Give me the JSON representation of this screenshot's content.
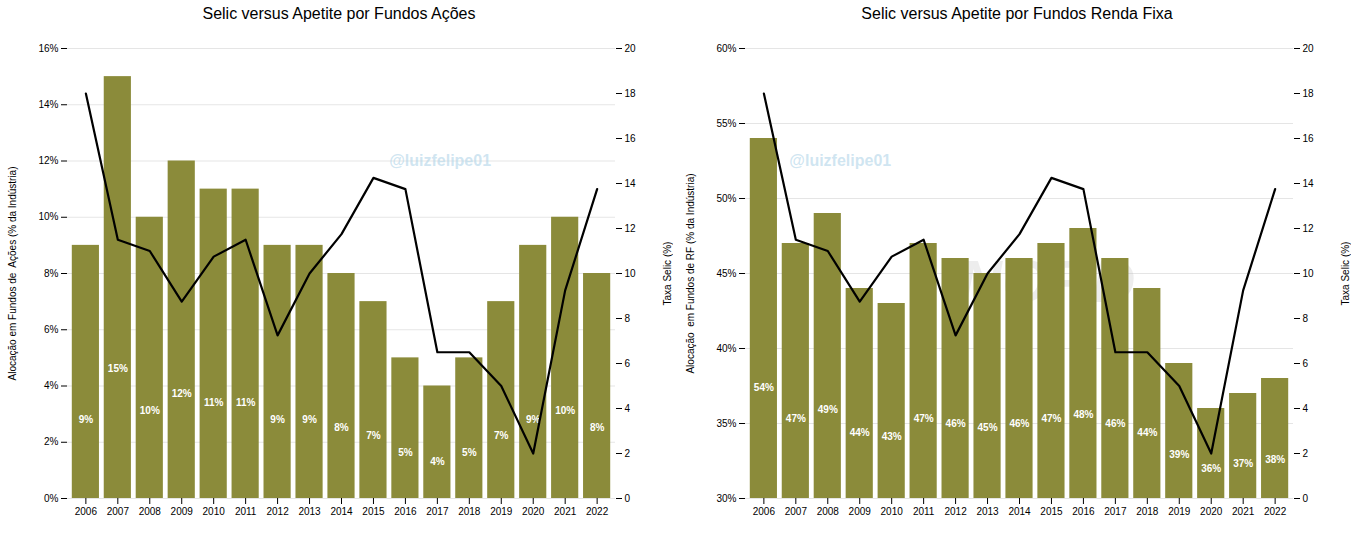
{
  "chart_data": [
    {
      "type": "bar",
      "title": "Selic versus Apetite por Fundos Ações",
      "ylabel": "Alocação em Fundos de  Ações (% da Indústria)",
      "y2label": "Taxa Selic (%)",
      "categories": [
        "2006",
        "2007",
        "2008",
        "2009",
        "2010",
        "2011",
        "2012",
        "2013",
        "2014",
        "2015",
        "2016",
        "2017",
        "2018",
        "2019",
        "2020",
        "2021",
        "2022"
      ],
      "series": [
        {
          "type": "bar",
          "color": "#8B8B3A",
          "values": [
            9,
            15,
            10,
            12,
            11,
            11,
            9,
            9,
            8,
            7,
            5,
            4,
            5,
            7,
            9,
            10,
            8
          ],
          "value_labels": [
            "9%",
            "15%",
            "10%",
            "12%",
            "11%",
            "11%",
            "9%",
            "9%",
            "8%",
            "7%",
            "5%",
            "4%",
            "5%",
            "7%",
            "9%",
            "10%",
            "8%"
          ]
        },
        {
          "type": "line",
          "axis": "y2",
          "color": "#000000",
          "values": [
            18.0,
            11.5,
            11.0,
            8.75,
            10.75,
            11.5,
            7.25,
            10.0,
            11.75,
            14.25,
            13.75,
            6.5,
            6.5,
            5.0,
            2.0,
            9.25,
            13.75
          ]
        }
      ],
      "ylim": [
        0,
        16
      ],
      "yticks": [
        {
          "value": 0,
          "label": "0%"
        },
        {
          "value": 2,
          "label": "2%"
        },
        {
          "value": 4,
          "label": "4%"
        },
        {
          "value": 6,
          "label": "6%"
        },
        {
          "value": 8,
          "label": "8%"
        },
        {
          "value": 10,
          "label": "10%"
        },
        {
          "value": 12,
          "label": "12%"
        },
        {
          "value": 14,
          "label": "14%"
        },
        {
          "value": 16,
          "label": "16%"
        }
      ],
      "y2lim": [
        0,
        20
      ],
      "y2ticks": [
        0,
        2,
        4,
        6,
        8,
        10,
        12,
        14,
        16,
        18,
        20
      ],
      "grid": true,
      "data_labels": true,
      "annotations": [
        "@luizfelipe01"
      ]
    },
    {
      "type": "bar",
      "title": "Selic versus Apetite por Fundos Renda Fixa",
      "ylabel": "Alocação  em Fundos de RF (% da Indústria)",
      "y2label": "Taxa Selic (%)",
      "categories": [
        "2006",
        "2007",
        "2008",
        "2009",
        "2010",
        "2011",
        "2012",
        "2013",
        "2014",
        "2015",
        "2016",
        "2017",
        "2018",
        "2019",
        "2020",
        "2021",
        "2022"
      ],
      "series": [
        {
          "type": "bar",
          "color": "#8B8B3A",
          "values": [
            54,
            47,
            49,
            44,
            43,
            47,
            46,
            45,
            46,
            47,
            48,
            46,
            44,
            39,
            36,
            37,
            38
          ],
          "value_labels": [
            "54%",
            "47%",
            "49%",
            "44%",
            "43%",
            "47%",
            "46%",
            "45%",
            "46%",
            "47%",
            "48%",
            "46%",
            "44%",
            "39%",
            "36%",
            "37%",
            "38%"
          ]
        },
        {
          "type": "line",
          "axis": "y2",
          "color": "#000000",
          "values": [
            18.0,
            11.5,
            11.0,
            8.75,
            10.75,
            11.5,
            7.25,
            10.0,
            11.75,
            14.25,
            13.75,
            6.5,
            6.5,
            5.0,
            2.0,
            9.25,
            13.75
          ]
        }
      ],
      "ylim": [
        30,
        60
      ],
      "yticks": [
        {
          "value": 30,
          "label": "30%"
        },
        {
          "value": 35,
          "label": "35%"
        },
        {
          "value": 40,
          "label": "40%"
        },
        {
          "value": 45,
          "label": "45%"
        },
        {
          "value": 50,
          "label": "50%"
        },
        {
          "value": 55,
          "label": "55%"
        },
        {
          "value": 60,
          "label": "60%"
        }
      ],
      "y2lim": [
        0,
        20
      ],
      "y2ticks": [
        0,
        2,
        4,
        6,
        8,
        10,
        12,
        14,
        16,
        18,
        20
      ],
      "grid": true,
      "data_labels": true,
      "annotations": [
        "@luizfelipe01",
        "NORD"
      ]
    }
  ]
}
